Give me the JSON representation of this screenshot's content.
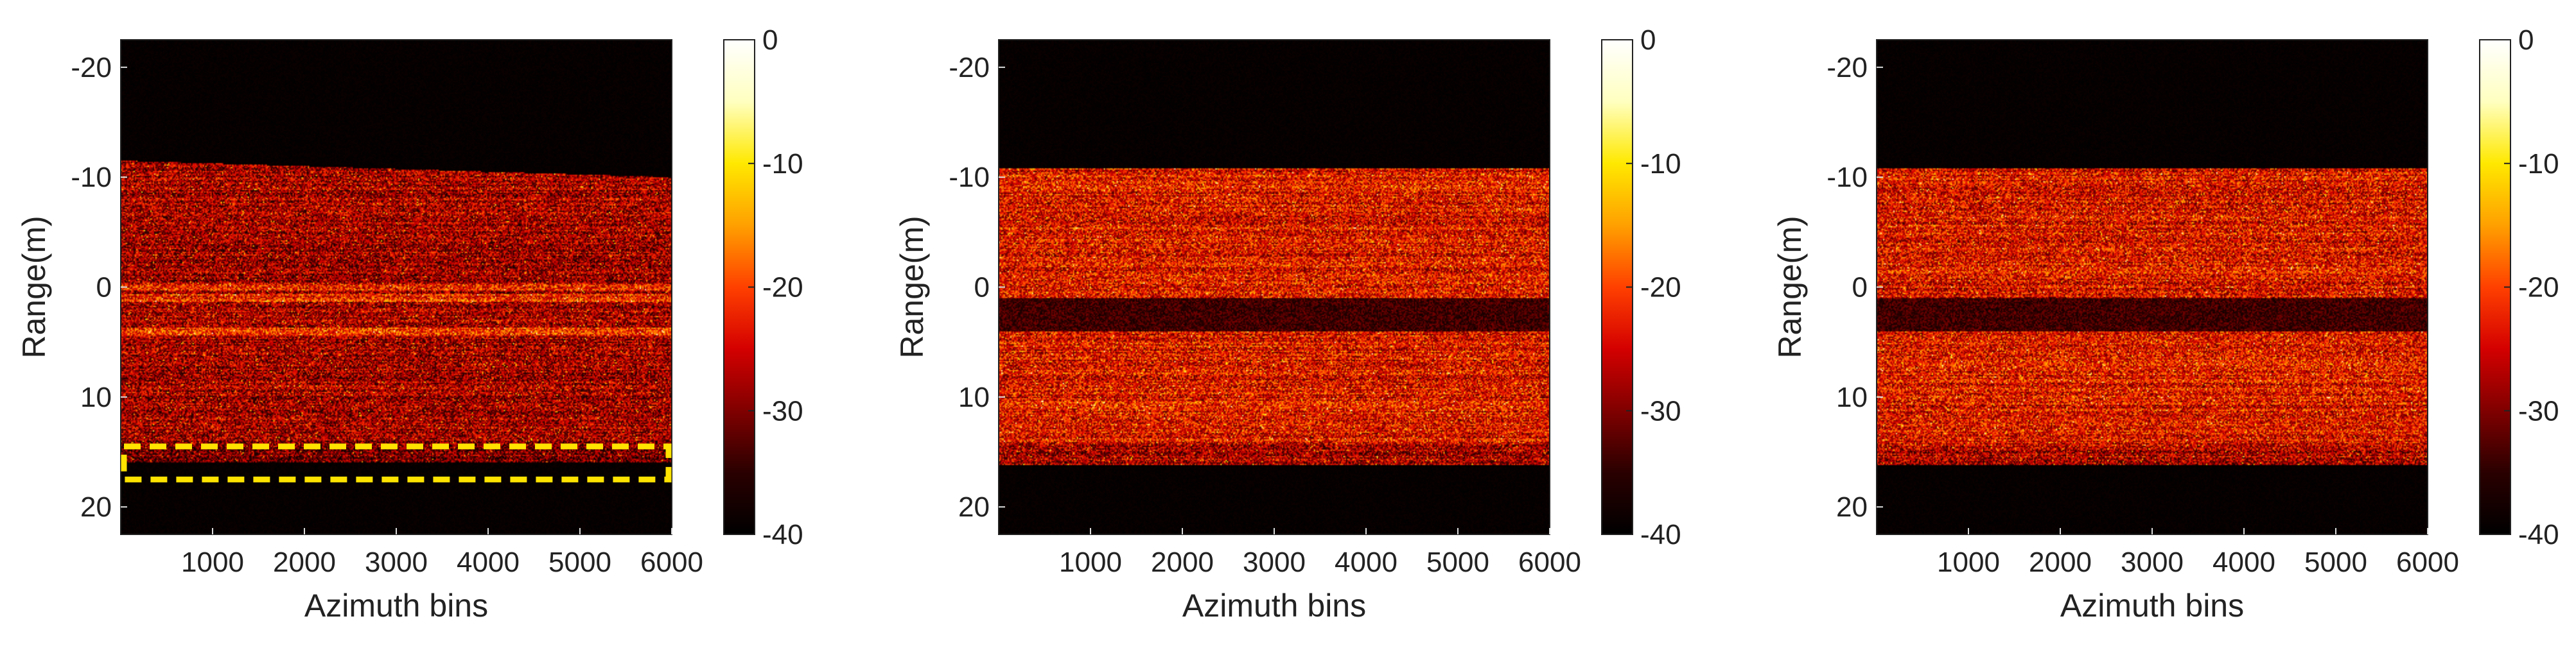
{
  "figure": {
    "panel_count": 3,
    "background": "#ffffff"
  },
  "colormap": {
    "name": "hot",
    "stops": [
      "#000000",
      "#2a0000",
      "#800000",
      "#d40000",
      "#ff4000",
      "#ffa000",
      "#ffe800",
      "#ffffc0",
      "#ffffff"
    ]
  },
  "chart_data": [
    {
      "type": "heatmap",
      "name": "panel-1",
      "xlabel": "Azimuth bins",
      "ylabel": "Range(m)",
      "xlim": [
        0,
        6000
      ],
      "ylim": [
        -22.5,
        22.5
      ],
      "y_reversed": true,
      "xticks": [
        1000,
        2000,
        3000,
        4000,
        5000,
        6000
      ],
      "yticks": [
        -20,
        -10,
        0,
        10,
        20
      ],
      "colorbar": {
        "ticks": [
          0,
          -10,
          -20,
          -30,
          -40
        ],
        "clim": [
          -40,
          0
        ]
      },
      "signal_band": {
        "top_start": -11.5,
        "top_end": -10.0,
        "bottom": 16.0
      },
      "dark_band": null,
      "bright_rows": [
        0.0,
        1.0,
        4.0
      ],
      "mean_level_db": -28,
      "annotation": {
        "shape": "dashed-rectangle",
        "color": "#ffe200",
        "x_range": [
          0,
          6000
        ],
        "y_range": [
          14.5,
          17.5
        ]
      }
    },
    {
      "type": "heatmap",
      "name": "panel-2",
      "xlabel": "Azimuth bins",
      "ylabel": "Range(m)",
      "xlim": [
        0,
        6000
      ],
      "ylim": [
        -22.5,
        22.5
      ],
      "y_reversed": true,
      "xticks": [
        1000,
        2000,
        3000,
        4000,
        5000,
        6000
      ],
      "yticks": [
        -20,
        -10,
        0,
        10,
        20
      ],
      "colorbar": {
        "ticks": [
          0,
          -10,
          -20,
          -30,
          -40
        ],
        "clim": [
          -40,
          0
        ]
      },
      "signal_band": {
        "top_start": -10.8,
        "top_end": -10.8,
        "bottom": 16.2
      },
      "dark_band": [
        1.0,
        4.0
      ],
      "bright_rows": [],
      "mean_level_db": -24,
      "annotation": null
    },
    {
      "type": "heatmap",
      "name": "panel-3",
      "xlabel": "Azimuth bins",
      "ylabel": "Range(m)",
      "xlim": [
        0,
        6000
      ],
      "ylim": [
        -22.5,
        22.5
      ],
      "y_reversed": true,
      "xticks": [
        1000,
        2000,
        3000,
        4000,
        5000,
        6000
      ],
      "yticks": [
        -20,
        -10,
        0,
        10,
        20
      ],
      "colorbar": {
        "ticks": [
          0,
          -10,
          -20,
          -30,
          -40
        ],
        "clim": [
          -40,
          0
        ]
      },
      "signal_band": {
        "top_start": -10.8,
        "top_end": -10.8,
        "bottom": 16.2
      },
      "dark_band": [
        1.0,
        4.0
      ],
      "bright_rows": [],
      "mean_level_db": -24,
      "annotation": null
    }
  ]
}
